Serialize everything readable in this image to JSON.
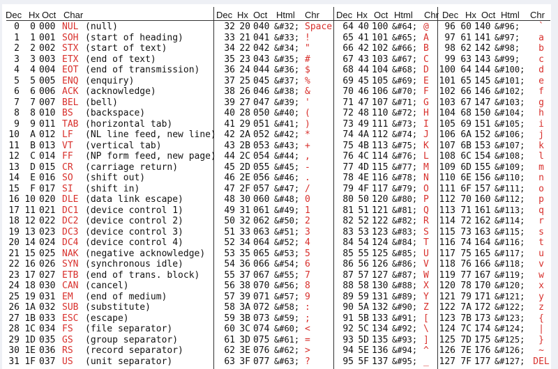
{
  "headers": {
    "group1": [
      "Dec",
      "Hx",
      "Oct",
      "Char"
    ],
    "group2": [
      "Dec",
      "Hx",
      "Oct",
      "Html",
      "Chr"
    ],
    "group3": [
      "Dec",
      "Hx",
      "Oct",
      "Html",
      "Chr"
    ],
    "group4": [
      "Dec",
      "Hx",
      "Oct",
      "Html",
      "Chr"
    ]
  },
  "colors": {
    "accent": "#d8302c",
    "text": "#111111",
    "background": "#eef0f5"
  },
  "group1": [
    [
      "0",
      "0",
      "000",
      "NUL",
      "(null)"
    ],
    [
      "1",
      "1",
      "001",
      "SOH",
      "(start of heading)"
    ],
    [
      "2",
      "2",
      "002",
      "STX",
      "(start of text)"
    ],
    [
      "3",
      "3",
      "003",
      "ETX",
      "(end of text)"
    ],
    [
      "4",
      "4",
      "004",
      "EOT",
      "(end of transmission)"
    ],
    [
      "5",
      "5",
      "005",
      "ENQ",
      "(enquiry)"
    ],
    [
      "6",
      "6",
      "006",
      "ACK",
      "(acknowledge)"
    ],
    [
      "7",
      "7",
      "007",
      "BEL",
      "(bell)"
    ],
    [
      "8",
      "8",
      "010",
      "BS",
      "(backspace)"
    ],
    [
      "9",
      "9",
      "011",
      "TAB",
      "(horizontal tab)"
    ],
    [
      "10",
      "A",
      "012",
      "LF",
      "(NL line feed, new line)"
    ],
    [
      "11",
      "B",
      "013",
      "VT",
      "(vertical tab)"
    ],
    [
      "12",
      "C",
      "014",
      "FF",
      "(NP form feed, new page)"
    ],
    [
      "13",
      "D",
      "015",
      "CR",
      "(carriage return)"
    ],
    [
      "14",
      "E",
      "016",
      "SO",
      "(shift out)"
    ],
    [
      "15",
      "F",
      "017",
      "SI",
      "(shift in)"
    ],
    [
      "16",
      "10",
      "020",
      "DLE",
      "(data link escape)"
    ],
    [
      "17",
      "11",
      "021",
      "DC1",
      "(device control 1)"
    ],
    [
      "18",
      "12",
      "022",
      "DC2",
      "(device control 2)"
    ],
    [
      "19",
      "13",
      "023",
      "DC3",
      "(device control 3)"
    ],
    [
      "20",
      "14",
      "024",
      "DC4",
      "(device control 4)"
    ],
    [
      "21",
      "15",
      "025",
      "NAK",
      "(negative acknowledge)"
    ],
    [
      "22",
      "16",
      "026",
      "SYN",
      "(synchronous idle)"
    ],
    [
      "23",
      "17",
      "027",
      "ETB",
      "(end of trans. block)"
    ],
    [
      "24",
      "18",
      "030",
      "CAN",
      "(cancel)"
    ],
    [
      "25",
      "19",
      "031",
      "EM",
      "(end of medium)"
    ],
    [
      "26",
      "1A",
      "032",
      "SUB",
      "(substitute)"
    ],
    [
      "27",
      "1B",
      "033",
      "ESC",
      "(escape)"
    ],
    [
      "28",
      "1C",
      "034",
      "FS",
      "(file separator)"
    ],
    [
      "29",
      "1D",
      "035",
      "GS",
      "(group separator)"
    ],
    [
      "30",
      "1E",
      "036",
      "RS",
      "(record separator)"
    ],
    [
      "31",
      "1F",
      "037",
      "US",
      "(unit separator)"
    ]
  ],
  "group2": [
    [
      "32",
      "20",
      "040",
      "&#32;",
      "Space"
    ],
    [
      "33",
      "21",
      "041",
      "&#33;",
      "!"
    ],
    [
      "34",
      "22",
      "042",
      "&#34;",
      "\""
    ],
    [
      "35",
      "23",
      "043",
      "&#35;",
      "#"
    ],
    [
      "36",
      "24",
      "044",
      "&#36;",
      "$"
    ],
    [
      "37",
      "25",
      "045",
      "&#37;",
      "%"
    ],
    [
      "38",
      "26",
      "046",
      "&#38;",
      "&"
    ],
    [
      "39",
      "27",
      "047",
      "&#39;",
      "'"
    ],
    [
      "40",
      "28",
      "050",
      "&#40;",
      "("
    ],
    [
      "41",
      "29",
      "051",
      "&#41;",
      ")"
    ],
    [
      "42",
      "2A",
      "052",
      "&#42;",
      "*"
    ],
    [
      "43",
      "2B",
      "053",
      "&#43;",
      "+"
    ],
    [
      "44",
      "2C",
      "054",
      "&#44;",
      ","
    ],
    [
      "45",
      "2D",
      "055",
      "&#45;",
      "-"
    ],
    [
      "46",
      "2E",
      "056",
      "&#46;",
      "."
    ],
    [
      "47",
      "2F",
      "057",
      "&#47;",
      "/"
    ],
    [
      "48",
      "30",
      "060",
      "&#48;",
      "0"
    ],
    [
      "49",
      "31",
      "061",
      "&#49;",
      "1"
    ],
    [
      "50",
      "32",
      "062",
      "&#50;",
      "2"
    ],
    [
      "51",
      "33",
      "063",
      "&#51;",
      "3"
    ],
    [
      "52",
      "34",
      "064",
      "&#52;",
      "4"
    ],
    [
      "53",
      "35",
      "065",
      "&#53;",
      "5"
    ],
    [
      "54",
      "36",
      "066",
      "&#54;",
      "6"
    ],
    [
      "55",
      "37",
      "067",
      "&#55;",
      "7"
    ],
    [
      "56",
      "38",
      "070",
      "&#56;",
      "8"
    ],
    [
      "57",
      "39",
      "071",
      "&#57;",
      "9"
    ],
    [
      "58",
      "3A",
      "072",
      "&#58;",
      ":"
    ],
    [
      "59",
      "3B",
      "073",
      "&#59;",
      ";"
    ],
    [
      "60",
      "3C",
      "074",
      "&#60;",
      "<"
    ],
    [
      "61",
      "3D",
      "075",
      "&#61;",
      "="
    ],
    [
      "62",
      "3E",
      "076",
      "&#62;",
      ">"
    ],
    [
      "63",
      "3F",
      "077",
      "&#63;",
      "?"
    ]
  ],
  "group3": [
    [
      "64",
      "40",
      "100",
      "&#64;",
      "@"
    ],
    [
      "65",
      "41",
      "101",
      "&#65;",
      "A"
    ],
    [
      "66",
      "42",
      "102",
      "&#66;",
      "B"
    ],
    [
      "67",
      "43",
      "103",
      "&#67;",
      "C"
    ],
    [
      "68",
      "44",
      "104",
      "&#68;",
      "D"
    ],
    [
      "69",
      "45",
      "105",
      "&#69;",
      "E"
    ],
    [
      "70",
      "46",
      "106",
      "&#70;",
      "F"
    ],
    [
      "71",
      "47",
      "107",
      "&#71;",
      "G"
    ],
    [
      "72",
      "48",
      "110",
      "&#72;",
      "H"
    ],
    [
      "73",
      "49",
      "111",
      "&#73;",
      "I"
    ],
    [
      "74",
      "4A",
      "112",
      "&#74;",
      "J"
    ],
    [
      "75",
      "4B",
      "113",
      "&#75;",
      "K"
    ],
    [
      "76",
      "4C",
      "114",
      "&#76;",
      "L"
    ],
    [
      "77",
      "4D",
      "115",
      "&#77;",
      "M"
    ],
    [
      "78",
      "4E",
      "116",
      "&#78;",
      "N"
    ],
    [
      "79",
      "4F",
      "117",
      "&#79;",
      "O"
    ],
    [
      "80",
      "50",
      "120",
      "&#80;",
      "P"
    ],
    [
      "81",
      "51",
      "121",
      "&#81;",
      "Q"
    ],
    [
      "82",
      "52",
      "122",
      "&#82;",
      "R"
    ],
    [
      "83",
      "53",
      "123",
      "&#83;",
      "S"
    ],
    [
      "84",
      "54",
      "124",
      "&#84;",
      "T"
    ],
    [
      "85",
      "55",
      "125",
      "&#85;",
      "U"
    ],
    [
      "86",
      "56",
      "126",
      "&#86;",
      "V"
    ],
    [
      "87",
      "57",
      "127",
      "&#87;",
      "W"
    ],
    [
      "88",
      "58",
      "130",
      "&#88;",
      "X"
    ],
    [
      "89",
      "59",
      "131",
      "&#89;",
      "Y"
    ],
    [
      "90",
      "5A",
      "132",
      "&#90;",
      "Z"
    ],
    [
      "91",
      "5B",
      "133",
      "&#91;",
      "["
    ],
    [
      "92",
      "5C",
      "134",
      "&#92;",
      "\\"
    ],
    [
      "93",
      "5D",
      "135",
      "&#93;",
      "]"
    ],
    [
      "94",
      "5E",
      "136",
      "&#94;",
      "^"
    ],
    [
      "95",
      "5F",
      "137",
      "&#95;",
      "_"
    ]
  ],
  "group4": [
    [
      "96",
      "60",
      "140",
      "&#96;",
      "`"
    ],
    [
      "97",
      "61",
      "141",
      "&#97;",
      "a"
    ],
    [
      "98",
      "62",
      "142",
      "&#98;",
      "b"
    ],
    [
      "99",
      "63",
      "143",
      "&#99;",
      "c"
    ],
    [
      "100",
      "64",
      "144",
      "&#100;",
      "d"
    ],
    [
      "101",
      "65",
      "145",
      "&#101;",
      "e"
    ],
    [
      "102",
      "66",
      "146",
      "&#102;",
      "f"
    ],
    [
      "103",
      "67",
      "147",
      "&#103;",
      "g"
    ],
    [
      "104",
      "68",
      "150",
      "&#104;",
      "h"
    ],
    [
      "105",
      "69",
      "151",
      "&#105;",
      "i"
    ],
    [
      "106",
      "6A",
      "152",
      "&#106;",
      "j"
    ],
    [
      "107",
      "6B",
      "153",
      "&#107;",
      "k"
    ],
    [
      "108",
      "6C",
      "154",
      "&#108;",
      "l"
    ],
    [
      "109",
      "6D",
      "155",
      "&#109;",
      "m"
    ],
    [
      "110",
      "6E",
      "156",
      "&#110;",
      "n"
    ],
    [
      "111",
      "6F",
      "157",
      "&#111;",
      "o"
    ],
    [
      "112",
      "70",
      "160",
      "&#112;",
      "p"
    ],
    [
      "113",
      "71",
      "161",
      "&#113;",
      "q"
    ],
    [
      "114",
      "72",
      "162",
      "&#114;",
      "r"
    ],
    [
      "115",
      "73",
      "163",
      "&#115;",
      "s"
    ],
    [
      "116",
      "74",
      "164",
      "&#116;",
      "t"
    ],
    [
      "117",
      "75",
      "165",
      "&#117;",
      "u"
    ],
    [
      "118",
      "76",
      "166",
      "&#118;",
      "v"
    ],
    [
      "119",
      "77",
      "167",
      "&#119;",
      "w"
    ],
    [
      "120",
      "78",
      "170",
      "&#120;",
      "x"
    ],
    [
      "121",
      "79",
      "171",
      "&#121;",
      "y"
    ],
    [
      "122",
      "7A",
      "172",
      "&#122;",
      "z"
    ],
    [
      "123",
      "7B",
      "173",
      "&#123;",
      "{"
    ],
    [
      "124",
      "7C",
      "174",
      "&#124;",
      "|"
    ],
    [
      "125",
      "7D",
      "175",
      "&#125;",
      "}"
    ],
    [
      "126",
      "7E",
      "176",
      "&#126;",
      "~"
    ],
    [
      "127",
      "7F",
      "177",
      "&#127;",
      "DEL"
    ]
  ]
}
